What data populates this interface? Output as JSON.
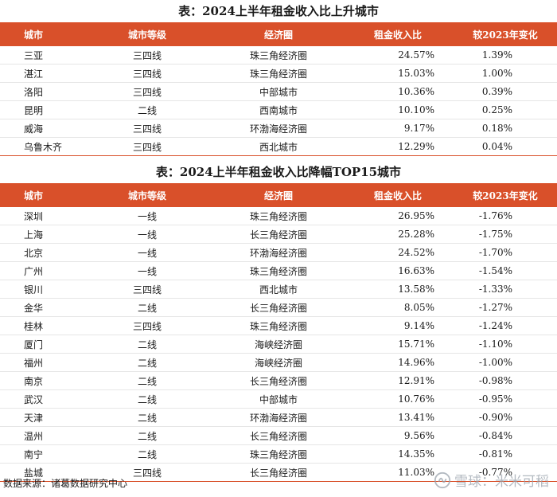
{
  "table1": {
    "title": "表：2024上半年租金收入比上升城市",
    "headers": [
      "城市",
      "城市等级",
      "经济圈",
      "租金收入比",
      "较2023年变化"
    ],
    "rows": [
      [
        "三亚",
        "三四线",
        "珠三角经济圈",
        "24.57%",
        "1.39%"
      ],
      [
        "湛江",
        "三四线",
        "珠三角经济圈",
        "15.03%",
        "1.00%"
      ],
      [
        "洛阳",
        "三四线",
        "中部城市",
        "10.36%",
        "0.39%"
      ],
      [
        "昆明",
        "二线",
        "西南城市",
        "10.10%",
        "0.25%"
      ],
      [
        "威海",
        "三四线",
        "环渤海经济圈",
        "9.17%",
        "0.18%"
      ],
      [
        "乌鲁木齐",
        "三四线",
        "西北城市",
        "12.29%",
        "0.04%"
      ]
    ]
  },
  "table2": {
    "title": "表：2024上半年租金收入比降幅TOP15城市",
    "headers": [
      "城市",
      "城市等级",
      "经济圈",
      "租金收入比",
      "较2023年变化"
    ],
    "rows": [
      [
        "深圳",
        "一线",
        "珠三角经济圈",
        "26.95%",
        "-1.76%"
      ],
      [
        "上海",
        "一线",
        "长三角经济圈",
        "25.28%",
        "-1.75%"
      ],
      [
        "北京",
        "一线",
        "环渤海经济圈",
        "24.52%",
        "-1.70%"
      ],
      [
        "广州",
        "一线",
        "珠三角经济圈",
        "16.63%",
        "-1.54%"
      ],
      [
        "银川",
        "三四线",
        "西北城市",
        "13.58%",
        "-1.33%"
      ],
      [
        "金华",
        "二线",
        "长三角经济圈",
        "8.05%",
        "-1.27%"
      ],
      [
        "桂林",
        "三四线",
        "珠三角经济圈",
        "9.14%",
        "-1.24%"
      ],
      [
        "厦门",
        "二线",
        "海峡经济圈",
        "15.71%",
        "-1.10%"
      ],
      [
        "福州",
        "二线",
        "海峡经济圈",
        "14.96%",
        "-1.00%"
      ],
      [
        "南京",
        "二线",
        "长三角经济圈",
        "12.91%",
        "-0.98%"
      ],
      [
        "武汉",
        "二线",
        "中部城市",
        "10.76%",
        "-0.95%"
      ],
      [
        "天津",
        "二线",
        "环渤海经济圈",
        "13.41%",
        "-0.90%"
      ],
      [
        "温州",
        "二线",
        "长三角经济圈",
        "9.56%",
        "-0.84%"
      ],
      [
        "南宁",
        "二线",
        "珠三角经济圈",
        "14.35%",
        "-0.81%"
      ],
      [
        "盐城",
        "三四线",
        "长三角经济圈",
        "11.03%",
        "-0.77%"
      ]
    ]
  },
  "footer": {
    "source": "数据来源：诸葛数据研究中心"
  },
  "watermark": {
    "text": "雪球：米米可稻",
    "icon": "xueqiu-logo-icon"
  },
  "colors": {
    "header_bg": "#d9502a",
    "header_text": "#ffffff",
    "watermark": "#9aa3ad"
  }
}
